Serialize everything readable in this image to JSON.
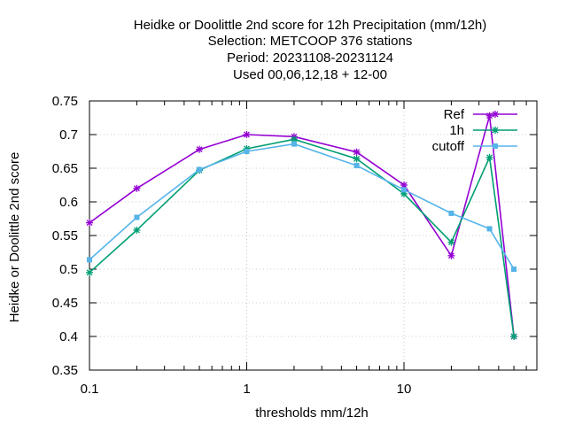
{
  "chart_data": {
    "type": "line",
    "title_lines": [
      "Heidke or Doolittle 2nd score  for 12h Precipitation (mm/12h)",
      "Selection: METCOOP    376 stations",
      "Period: 20231108-20231124",
      "Used  00,06,12,18 + 12-00"
    ],
    "xlabel": "thresholds mm/12h",
    "ylabel": "Heidke or Doolittle 2nd score",
    "x_scale": "log",
    "xlim": [
      0.1,
      70
    ],
    "ylim": [
      0.35,
      0.75
    ],
    "x_tick_labels": [
      "0.1",
      "1",
      "10"
    ],
    "y_ticks": [
      0.35,
      0.4,
      0.45,
      0.5,
      0.55,
      0.6,
      0.65,
      0.7,
      0.75
    ],
    "y_tick_labels": [
      "0.35",
      "0.4",
      "0.45",
      "0.5",
      "0.55",
      "0.6",
      "0.65",
      "0.7",
      "0.75"
    ],
    "grid": true,
    "legend_position": "top-right",
    "x": [
      0.1,
      0.2,
      0.5,
      1,
      2,
      5,
      10,
      20,
      35,
      50
    ],
    "series": [
      {
        "name": "Ref",
        "color": "#9400d3",
        "marker": "star",
        "values": [
          0.569,
          0.62,
          0.678,
          0.7,
          0.697,
          0.674,
          0.625,
          0.52,
          0.728,
          0.4
        ]
      },
      {
        "name": "1h",
        "color": "#009e73",
        "marker": "star",
        "values": [
          0.495,
          0.558,
          0.647,
          0.679,
          0.693,
          0.664,
          0.612,
          0.54,
          0.666,
          0.4
        ]
      },
      {
        "name": "cutoff",
        "color": "#56b4e9",
        "marker": "square",
        "values": [
          0.514,
          0.577,
          0.648,
          0.675,
          0.686,
          0.654,
          0.618,
          0.583,
          0.56,
          0.5
        ]
      }
    ]
  }
}
